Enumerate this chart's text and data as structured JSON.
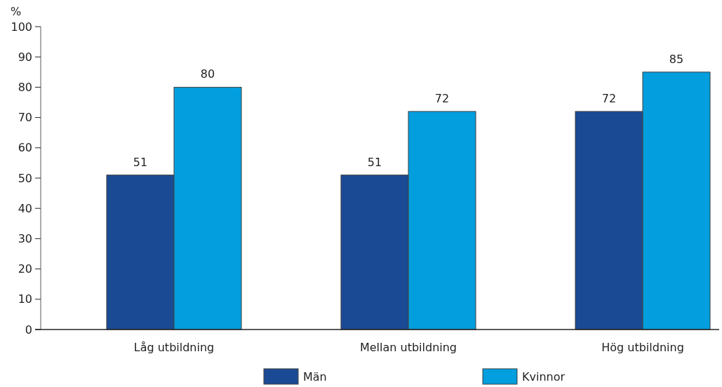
{
  "chart_data": {
    "type": "bar",
    "ylabel": "%",
    "categories": [
      "Låg utbildning",
      "Mellan utbildning",
      "Hög utbildning"
    ],
    "series": [
      {
        "name": "Män",
        "color": "#1a4a94",
        "values": [
          51,
          51,
          72
        ]
      },
      {
        "name": "Kvinnor",
        "color": "#039ede",
        "values": [
          80,
          72,
          85
        ]
      }
    ],
    "ylim": [
      0,
      100
    ],
    "yticks": [
      0,
      10,
      20,
      30,
      40,
      50,
      60,
      70,
      80,
      90,
      100
    ],
    "data_labels": true,
    "legend": "bottom",
    "grid": false
  }
}
